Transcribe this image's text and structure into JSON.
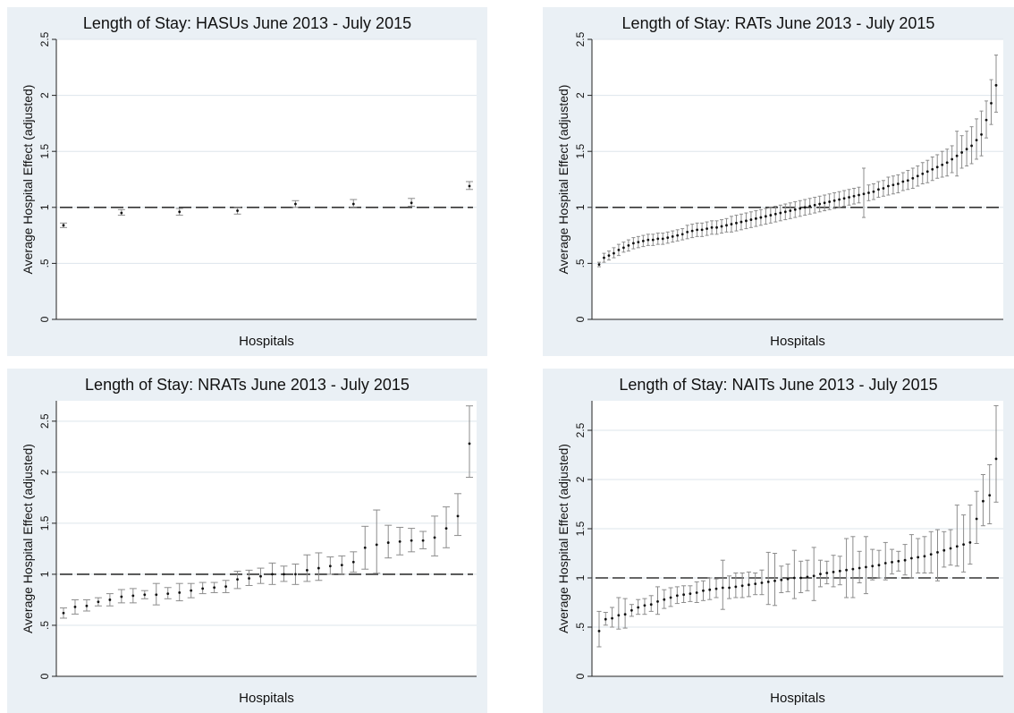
{
  "chart_data": [
    {
      "type": "scatter",
      "title": "Length of Stay: HASUs June 2013 - July 2015",
      "xlabel": "Hospitals",
      "ylabel": "Average Hospital Effect (adjusted)",
      "ylim": [
        0,
        2.5
      ],
      "yticks": [
        0,
        0.5,
        1,
        1.5,
        2,
        2.5
      ],
      "ytick_labels": [
        "0",
        ".5",
        "1",
        "1.5",
        "2",
        "2.5"
      ],
      "reference_line": 1,
      "grid": true,
      "points": [
        {
          "y": 0.84,
          "lo": 0.82,
          "hi": 0.86
        },
        {
          "y": 0.95,
          "lo": 0.93,
          "hi": 0.98
        },
        {
          "y": 0.96,
          "lo": 0.93,
          "hi": 0.99
        },
        {
          "y": 0.97,
          "lo": 0.94,
          "hi": 1.0
        },
        {
          "y": 1.03,
          "lo": 1.0,
          "hi": 1.06
        },
        {
          "y": 1.03,
          "lo": 1.0,
          "hi": 1.07
        },
        {
          "y": 1.04,
          "lo": 1.01,
          "hi": 1.08
        },
        {
          "y": 1.19,
          "lo": 1.16,
          "hi": 1.23
        }
      ]
    },
    {
      "type": "scatter",
      "title": "Length of Stay: RATs June 2013 - July 2015",
      "xlabel": "Hospitals",
      "ylabel": "Average Hospital Effect (adjusted)",
      "ylim": [
        0,
        2.5
      ],
      "yticks": [
        0,
        0.5,
        1,
        1.5,
        2,
        2.5
      ],
      "ytick_labels": [
        "0",
        ".5",
        "1",
        "1.5",
        "2",
        "2.5"
      ],
      "reference_line": 1,
      "grid": true,
      "points": [
        {
          "y": 0.49,
          "lo": 0.47,
          "hi": 0.51
        },
        {
          "y": 0.55,
          "lo": 0.51,
          "hi": 0.59
        },
        {
          "y": 0.57,
          "lo": 0.53,
          "hi": 0.61
        },
        {
          "y": 0.59,
          "lo": 0.55,
          "hi": 0.64
        },
        {
          "y": 0.62,
          "lo": 0.57,
          "hi": 0.67
        },
        {
          "y": 0.64,
          "lo": 0.6,
          "hi": 0.69
        },
        {
          "y": 0.66,
          "lo": 0.61,
          "hi": 0.71
        },
        {
          "y": 0.68,
          "lo": 0.63,
          "hi": 0.73
        },
        {
          "y": 0.69,
          "lo": 0.64,
          "hi": 0.74
        },
        {
          "y": 0.7,
          "lo": 0.65,
          "hi": 0.75
        },
        {
          "y": 0.71,
          "lo": 0.66,
          "hi": 0.76
        },
        {
          "y": 0.71,
          "lo": 0.66,
          "hi": 0.76
        },
        {
          "y": 0.72,
          "lo": 0.67,
          "hi": 0.77
        },
        {
          "y": 0.72,
          "lo": 0.67,
          "hi": 0.77
        },
        {
          "y": 0.73,
          "lo": 0.68,
          "hi": 0.78
        },
        {
          "y": 0.74,
          "lo": 0.69,
          "hi": 0.79
        },
        {
          "y": 0.75,
          "lo": 0.7,
          "hi": 0.8
        },
        {
          "y": 0.76,
          "lo": 0.71,
          "hi": 0.81
        },
        {
          "y": 0.78,
          "lo": 0.72,
          "hi": 0.84
        },
        {
          "y": 0.79,
          "lo": 0.73,
          "hi": 0.85
        },
        {
          "y": 0.8,
          "lo": 0.74,
          "hi": 0.86
        },
        {
          "y": 0.8,
          "lo": 0.74,
          "hi": 0.86
        },
        {
          "y": 0.81,
          "lo": 0.75,
          "hi": 0.87
        },
        {
          "y": 0.82,
          "lo": 0.76,
          "hi": 0.88
        },
        {
          "y": 0.82,
          "lo": 0.76,
          "hi": 0.88
        },
        {
          "y": 0.83,
          "lo": 0.77,
          "hi": 0.89
        },
        {
          "y": 0.84,
          "lo": 0.78,
          "hi": 0.9
        },
        {
          "y": 0.85,
          "lo": 0.78,
          "hi": 0.92
        },
        {
          "y": 0.86,
          "lo": 0.79,
          "hi": 0.93
        },
        {
          "y": 0.87,
          "lo": 0.8,
          "hi": 0.94
        },
        {
          "y": 0.88,
          "lo": 0.81,
          "hi": 0.95
        },
        {
          "y": 0.89,
          "lo": 0.82,
          "hi": 0.96
        },
        {
          "y": 0.9,
          "lo": 0.83,
          "hi": 0.97
        },
        {
          "y": 0.91,
          "lo": 0.84,
          "hi": 0.98
        },
        {
          "y": 0.92,
          "lo": 0.85,
          "hi": 0.99
        },
        {
          "y": 0.93,
          "lo": 0.86,
          "hi": 1.0
        },
        {
          "y": 0.94,
          "lo": 0.87,
          "hi": 1.01
        },
        {
          "y": 0.95,
          "lo": 0.88,
          "hi": 1.02
        },
        {
          "y": 0.96,
          "lo": 0.89,
          "hi": 1.03
        },
        {
          "y": 0.97,
          "lo": 0.9,
          "hi": 1.04
        },
        {
          "y": 0.98,
          "lo": 0.91,
          "hi": 1.05
        },
        {
          "y": 0.99,
          "lo": 0.92,
          "hi": 1.06
        },
        {
          "y": 1.0,
          "lo": 0.93,
          "hi": 1.07
        },
        {
          "y": 1.01,
          "lo": 0.94,
          "hi": 1.08
        },
        {
          "y": 1.02,
          "lo": 0.95,
          "hi": 1.09
        },
        {
          "y": 1.03,
          "lo": 0.96,
          "hi": 1.1
        },
        {
          "y": 1.04,
          "lo": 0.97,
          "hi": 1.11
        },
        {
          "y": 1.05,
          "lo": 0.98,
          "hi": 1.12
        },
        {
          "y": 1.06,
          "lo": 0.99,
          "hi": 1.13
        },
        {
          "y": 1.07,
          "lo": 1.0,
          "hi": 1.14
        },
        {
          "y": 1.08,
          "lo": 1.01,
          "hi": 1.15
        },
        {
          "y": 1.09,
          "lo": 1.02,
          "hi": 1.16
        },
        {
          "y": 1.1,
          "lo": 1.03,
          "hi": 1.17
        },
        {
          "y": 1.11,
          "lo": 1.04,
          "hi": 1.18
        },
        {
          "y": 1.12,
          "lo": 0.91,
          "hi": 1.35
        },
        {
          "y": 1.13,
          "lo": 1.06,
          "hi": 1.2
        },
        {
          "y": 1.14,
          "lo": 1.07,
          "hi": 1.21
        },
        {
          "y": 1.16,
          "lo": 1.09,
          "hi": 1.23
        },
        {
          "y": 1.17,
          "lo": 1.1,
          "hi": 1.24
        },
        {
          "y": 1.19,
          "lo": 1.11,
          "hi": 1.27
        },
        {
          "y": 1.2,
          "lo": 1.12,
          "hi": 1.28
        },
        {
          "y": 1.21,
          "lo": 1.13,
          "hi": 1.29
        },
        {
          "y": 1.23,
          "lo": 1.15,
          "hi": 1.31
        },
        {
          "y": 1.24,
          "lo": 1.16,
          "hi": 1.33
        },
        {
          "y": 1.26,
          "lo": 1.17,
          "hi": 1.35
        },
        {
          "y": 1.28,
          "lo": 1.19,
          "hi": 1.37
        },
        {
          "y": 1.3,
          "lo": 1.21,
          "hi": 1.4
        },
        {
          "y": 1.32,
          "lo": 1.22,
          "hi": 1.42
        },
        {
          "y": 1.34,
          "lo": 1.24,
          "hi": 1.45
        },
        {
          "y": 1.36,
          "lo": 1.26,
          "hi": 1.47
        },
        {
          "y": 1.38,
          "lo": 1.27,
          "hi": 1.5
        },
        {
          "y": 1.4,
          "lo": 1.28,
          "hi": 1.52
        },
        {
          "y": 1.43,
          "lo": 1.31,
          "hi": 1.55
        },
        {
          "y": 1.46,
          "lo": 1.28,
          "hi": 1.68
        },
        {
          "y": 1.49,
          "lo": 1.35,
          "hi": 1.64
        },
        {
          "y": 1.52,
          "lo": 1.37,
          "hi": 1.68
        },
        {
          "y": 1.55,
          "lo": 1.39,
          "hi": 1.72
        },
        {
          "y": 1.6,
          "lo": 1.43,
          "hi": 1.79
        },
        {
          "y": 1.65,
          "lo": 1.46,
          "hi": 1.86
        },
        {
          "y": 1.78,
          "lo": 1.62,
          "hi": 1.95
        },
        {
          "y": 1.93,
          "lo": 1.74,
          "hi": 2.14
        },
        {
          "y": 2.09,
          "lo": 1.85,
          "hi": 2.36
        }
      ]
    },
    {
      "type": "scatter",
      "title": "Length of Stay: NRATs June 2013 - July 2015",
      "xlabel": "Hospitals",
      "ylabel": "Average Hospital Effect (adjusted)",
      "ylim": [
        0,
        2.7
      ],
      "yticks": [
        0,
        0.5,
        1,
        1.5,
        2,
        2.5
      ],
      "ytick_labels": [
        "0",
        ".5",
        "1",
        "1.5",
        "2",
        "2.5"
      ],
      "reference_line": 1,
      "grid": true,
      "points": [
        {
          "y": 0.62,
          "lo": 0.57,
          "hi": 0.67
        },
        {
          "y": 0.68,
          "lo": 0.61,
          "hi": 0.75
        },
        {
          "y": 0.69,
          "lo": 0.64,
          "hi": 0.75
        },
        {
          "y": 0.73,
          "lo": 0.69,
          "hi": 0.77
        },
        {
          "y": 0.75,
          "lo": 0.69,
          "hi": 0.81
        },
        {
          "y": 0.78,
          "lo": 0.72,
          "hi": 0.85
        },
        {
          "y": 0.79,
          "lo": 0.72,
          "hi": 0.86
        },
        {
          "y": 0.8,
          "lo": 0.76,
          "hi": 0.84
        },
        {
          "y": 0.8,
          "lo": 0.7,
          "hi": 0.91
        },
        {
          "y": 0.81,
          "lo": 0.76,
          "hi": 0.87
        },
        {
          "y": 0.82,
          "lo": 0.74,
          "hi": 0.91
        },
        {
          "y": 0.84,
          "lo": 0.77,
          "hi": 0.91
        },
        {
          "y": 0.86,
          "lo": 0.81,
          "hi": 0.92
        },
        {
          "y": 0.87,
          "lo": 0.82,
          "hi": 0.92
        },
        {
          "y": 0.88,
          "lo": 0.82,
          "hi": 0.94
        },
        {
          "y": 0.95,
          "lo": 0.86,
          "hi": 1.03
        },
        {
          "y": 0.96,
          "lo": 0.89,
          "hi": 1.04
        },
        {
          "y": 0.98,
          "lo": 0.91,
          "hi": 1.06
        },
        {
          "y": 1.0,
          "lo": 0.9,
          "hi": 1.11
        },
        {
          "y": 1.0,
          "lo": 0.93,
          "hi": 1.08
        },
        {
          "y": 1.0,
          "lo": 0.9,
          "hi": 1.1
        },
        {
          "y": 1.04,
          "lo": 0.93,
          "hi": 1.19
        },
        {
          "y": 1.06,
          "lo": 0.94,
          "hi": 1.21
        },
        {
          "y": 1.08,
          "lo": 1.0,
          "hi": 1.17
        },
        {
          "y": 1.09,
          "lo": 1.0,
          "hi": 1.18
        },
        {
          "y": 1.12,
          "lo": 1.02,
          "hi": 1.22
        },
        {
          "y": 1.26,
          "lo": 1.05,
          "hi": 1.47
        },
        {
          "y": 1.29,
          "lo": 1.01,
          "hi": 1.63
        },
        {
          "y": 1.31,
          "lo": 1.16,
          "hi": 1.48
        },
        {
          "y": 1.32,
          "lo": 1.19,
          "hi": 1.46
        },
        {
          "y": 1.33,
          "lo": 1.22,
          "hi": 1.45
        },
        {
          "y": 1.33,
          "lo": 1.25,
          "hi": 1.42
        },
        {
          "y": 1.36,
          "lo": 1.18,
          "hi": 1.57
        },
        {
          "y": 1.45,
          "lo": 1.26,
          "hi": 1.66
        },
        {
          "y": 1.57,
          "lo": 1.38,
          "hi": 1.79
        },
        {
          "y": 2.28,
          "lo": 1.95,
          "hi": 2.65
        }
      ]
    },
    {
      "type": "scatter",
      "title": "Length of Stay: NAITs June 2013 - July 2015",
      "xlabel": "Hospitals",
      "ylabel": "Average Hospital Effect (adjusted)",
      "ylim": [
        0,
        2.8
      ],
      "yticks": [
        0,
        0.5,
        1,
        1.5,
        2,
        2.5
      ],
      "ytick_labels": [
        "0",
        ".5",
        "1",
        "1.5",
        "2",
        "2.5"
      ],
      "reference_line": 1,
      "grid": true,
      "points": [
        {
          "y": 0.46,
          "lo": 0.3,
          "hi": 0.66
        },
        {
          "y": 0.58,
          "lo": 0.52,
          "hi": 0.65
        },
        {
          "y": 0.59,
          "lo": 0.5,
          "hi": 0.7
        },
        {
          "y": 0.62,
          "lo": 0.48,
          "hi": 0.8
        },
        {
          "y": 0.63,
          "lo": 0.49,
          "hi": 0.79
        },
        {
          "y": 0.67,
          "lo": 0.61,
          "hi": 0.73
        },
        {
          "y": 0.7,
          "lo": 0.63,
          "hi": 0.78
        },
        {
          "y": 0.72,
          "lo": 0.63,
          "hi": 0.79
        },
        {
          "y": 0.73,
          "lo": 0.66,
          "hi": 0.82
        },
        {
          "y": 0.76,
          "lo": 0.63,
          "hi": 0.91
        },
        {
          "y": 0.78,
          "lo": 0.69,
          "hi": 0.88
        },
        {
          "y": 0.8,
          "lo": 0.71,
          "hi": 0.9
        },
        {
          "y": 0.82,
          "lo": 0.74,
          "hi": 0.91
        },
        {
          "y": 0.83,
          "lo": 0.75,
          "hi": 0.92
        },
        {
          "y": 0.84,
          "lo": 0.76,
          "hi": 0.92
        },
        {
          "y": 0.85,
          "lo": 0.75,
          "hi": 0.96
        },
        {
          "y": 0.87,
          "lo": 0.77,
          "hi": 0.97
        },
        {
          "y": 0.88,
          "lo": 0.78,
          "hi": 1.0
        },
        {
          "y": 0.89,
          "lo": 0.8,
          "hi": 0.99
        },
        {
          "y": 0.9,
          "lo": 0.68,
          "hi": 1.18
        },
        {
          "y": 0.9,
          "lo": 0.79,
          "hi": 1.02
        },
        {
          "y": 0.91,
          "lo": 0.8,
          "hi": 1.05
        },
        {
          "y": 0.92,
          "lo": 0.8,
          "hi": 1.05
        },
        {
          "y": 0.93,
          "lo": 0.81,
          "hi": 1.06
        },
        {
          "y": 0.94,
          "lo": 0.83,
          "hi": 1.05
        },
        {
          "y": 0.95,
          "lo": 0.83,
          "hi": 1.08
        },
        {
          "y": 0.96,
          "lo": 0.73,
          "hi": 1.26
        },
        {
          "y": 0.97,
          "lo": 0.72,
          "hi": 1.25
        },
        {
          "y": 0.98,
          "lo": 0.85,
          "hi": 1.12
        },
        {
          "y": 0.99,
          "lo": 0.86,
          "hi": 1.14
        },
        {
          "y": 1.0,
          "lo": 0.79,
          "hi": 1.28
        },
        {
          "y": 1.0,
          "lo": 0.85,
          "hi": 1.17
        },
        {
          "y": 1.01,
          "lo": 0.87,
          "hi": 1.18
        },
        {
          "y": 1.02,
          "lo": 0.77,
          "hi": 1.31
        },
        {
          "y": 1.04,
          "lo": 0.91,
          "hi": 1.18
        },
        {
          "y": 1.05,
          "lo": 0.94,
          "hi": 1.17
        },
        {
          "y": 1.06,
          "lo": 0.91,
          "hi": 1.23
        },
        {
          "y": 1.07,
          "lo": 0.93,
          "hi": 1.22
        },
        {
          "y": 1.08,
          "lo": 0.8,
          "hi": 1.4
        },
        {
          "y": 1.09,
          "lo": 0.8,
          "hi": 1.42
        },
        {
          "y": 1.1,
          "lo": 0.95,
          "hi": 1.27
        },
        {
          "y": 1.11,
          "lo": 0.84,
          "hi": 1.42
        },
        {
          "y": 1.12,
          "lo": 0.98,
          "hi": 1.29
        },
        {
          "y": 1.13,
          "lo": 1.0,
          "hi": 1.28
        },
        {
          "y": 1.15,
          "lo": 0.98,
          "hi": 1.36
        },
        {
          "y": 1.16,
          "lo": 1.04,
          "hi": 1.29
        },
        {
          "y": 1.17,
          "lo": 1.07,
          "hi": 1.27
        },
        {
          "y": 1.18,
          "lo": 1.03,
          "hi": 1.34
        },
        {
          "y": 1.2,
          "lo": 1.0,
          "hi": 1.44
        },
        {
          "y": 1.21,
          "lo": 1.05,
          "hi": 1.4
        },
        {
          "y": 1.22,
          "lo": 1.05,
          "hi": 1.42
        },
        {
          "y": 1.24,
          "lo": 1.05,
          "hi": 1.47
        },
        {
          "y": 1.26,
          "lo": 0.97,
          "hi": 1.49
        },
        {
          "y": 1.28,
          "lo": 1.11,
          "hi": 1.47
        },
        {
          "y": 1.3,
          "lo": 1.13,
          "hi": 1.49
        },
        {
          "y": 1.32,
          "lo": 1.12,
          "hi": 1.74
        },
        {
          "y": 1.34,
          "lo": 1.06,
          "hi": 1.64
        },
        {
          "y": 1.36,
          "lo": 1.14,
          "hi": 1.74
        },
        {
          "y": 1.6,
          "lo": 1.35,
          "hi": 1.88
        },
        {
          "y": 1.78,
          "lo": 1.53,
          "hi": 2.05
        },
        {
          "y": 1.84,
          "lo": 1.55,
          "hi": 2.15
        },
        {
          "y": 2.21,
          "lo": 1.77,
          "hi": 2.75
        }
      ]
    }
  ]
}
